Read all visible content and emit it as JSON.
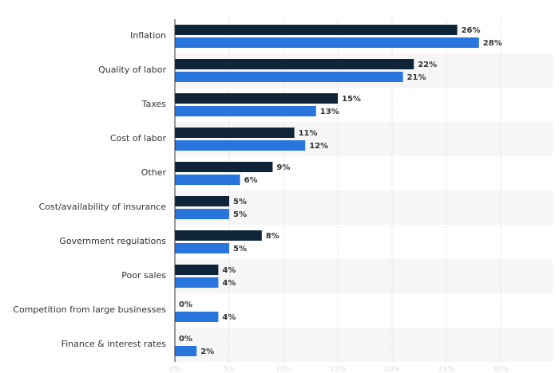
{
  "colors": {
    "series_dark": "#0f2438",
    "series_blue": "#2876dd",
    "row_band": "#f6f6f6",
    "grid": "#dddddd",
    "axis": "#333333"
  },
  "chart_data": {
    "type": "bar",
    "orientation": "horizontal",
    "title": "",
    "xlabel": "",
    "ylabel": "",
    "xlim": [
      0,
      35
    ],
    "x_ticks": [
      0,
      5,
      10,
      15,
      20,
      25,
      30,
      35
    ],
    "x_tick_labels": [
      "0%",
      "5%",
      "10%",
      "15%",
      "20%",
      "25%",
      "30%",
      "35%"
    ],
    "grid": true,
    "legend": "none",
    "categories": [
      "Inflation",
      "Quality of labor",
      "Taxes",
      "Cost of labor",
      "Other",
      "Cost/availability of insurance",
      "Government regulations",
      "Poor sales",
      "Competition from large businesses",
      "Finance & interest rates"
    ],
    "series": [
      {
        "color": "#0f2438",
        "values": [
          26,
          22,
          15,
          11,
          9,
          5,
          8,
          4,
          0,
          0
        ],
        "labels": [
          "26%",
          "22%",
          "15%",
          "11%",
          "9%",
          "5%",
          "8%",
          "4%",
          "0%",
          "0%"
        ]
      },
      {
        "color": "#2876dd",
        "values": [
          28,
          21,
          13,
          12,
          6,
          5,
          5,
          4,
          4,
          2
        ],
        "labels": [
          "28%",
          "21%",
          "13%",
          "12%",
          "6%",
          "5%",
          "5%",
          "4%",
          "4%",
          "2%"
        ]
      }
    ]
  }
}
